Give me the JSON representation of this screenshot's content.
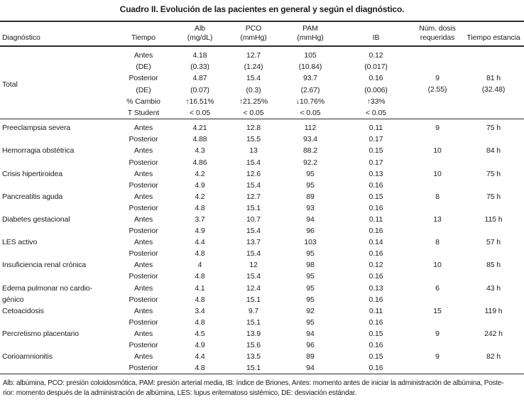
{
  "title": "Cuadro II. Evolución de las pacientes en general y según el diagnóstico.",
  "header": {
    "columns": [
      {
        "line1": "",
        "line2": "Diagnóstico"
      },
      {
        "line1": "",
        "line2": "Tiempo"
      },
      {
        "line1": "Alb",
        "line2": "(mg/dL)"
      },
      {
        "line1": "PCO",
        "line2": "(mmHg)"
      },
      {
        "line1": "PAM",
        "line2": "(mmHg)"
      },
      {
        "line1": "",
        "line2": "IB"
      },
      {
        "line1": "Núm. dosis",
        "line2": "requeridas"
      },
      {
        "line1": "",
        "line2": "Tiempo estancia"
      }
    ]
  },
  "total": {
    "label": "Total",
    "rows": [
      {
        "tiempo": "Antes",
        "alb": "4.18",
        "pco": "12.7",
        "pam": "105",
        "ib": "0.12"
      },
      {
        "tiempo": "(DE)",
        "alb": "(0.33)",
        "pco": "(1.24)",
        "pam": "(10.84)",
        "ib": "(0.017)"
      },
      {
        "tiempo": "Posterior",
        "alb": "4.87",
        "pco": "15.4",
        "pam": "93.7",
        "ib": "0.16"
      },
      {
        "tiempo": "(DE)",
        "alb": "(0.07)",
        "pco": "(0.3)",
        "pam": "(2.67)",
        "ib": "(0.006)"
      },
      {
        "tiempo": "% Cambio",
        "alb": "↑16.51%",
        "pco": "↑21.25%",
        "pam": "↓10.76%",
        "ib": "↑33%"
      },
      {
        "tiempo": "T Student",
        "alb": "< 0.05",
        "pco": "< 0.05",
        "pam": "< 0.05",
        "ib": "< 0.05"
      }
    ],
    "dosis": "9",
    "dosis_de": "(2.55)",
    "estancia": "81 h",
    "estancia_de": "(32.48)"
  },
  "time_labels": {
    "antes": "Antes",
    "posterior": "Posterior"
  },
  "diagnoses": [
    {
      "name": "Preeclampsia severa",
      "name2": "",
      "antes": {
        "alb": "4.21",
        "pco": "12.8",
        "pam": "112",
        "ib": "0.11"
      },
      "posterior": {
        "alb": "4.88",
        "pco": "15.5",
        "pam": "93.4",
        "ib": "0.17"
      },
      "dosis": "9",
      "estancia": "75 h"
    },
    {
      "name": "Hemorragia obstétrica",
      "name2": "",
      "antes": {
        "alb": "4.3",
        "pco": "13",
        "pam": "88.2",
        "ib": "0.15"
      },
      "posterior": {
        "alb": "4.86",
        "pco": "15.4",
        "pam": "92.2",
        "ib": "0.17"
      },
      "dosis": "10",
      "estancia": "84 h"
    },
    {
      "name": "Crisis hipertiroidea",
      "name2": "",
      "antes": {
        "alb": "4.2",
        "pco": "12.6",
        "pam": "95",
        "ib": "0.13"
      },
      "posterior": {
        "alb": "4.9",
        "pco": "15.4",
        "pam": "95",
        "ib": "0.16"
      },
      "dosis": "10",
      "estancia": "75 h"
    },
    {
      "name": "Pancreatitis aguda",
      "name2": "",
      "antes": {
        "alb": "4.2",
        "pco": "12.7",
        "pam": "89",
        "ib": "0.15"
      },
      "posterior": {
        "alb": "4.8",
        "pco": "15.1",
        "pam": "93",
        "ib": "0.16"
      },
      "dosis": "8",
      "estancia": "75 h"
    },
    {
      "name": "Diabetes gestacional",
      "name2": "",
      "antes": {
        "alb": "3.7",
        "pco": "10.7",
        "pam": "94",
        "ib": "0.11"
      },
      "posterior": {
        "alb": "4.9",
        "pco": "15.4",
        "pam": "96",
        "ib": "0.16"
      },
      "dosis": "13",
      "estancia": "115 h"
    },
    {
      "name": "LES activo",
      "name2": "",
      "antes": {
        "alb": "4.4",
        "pco": "13.7",
        "pam": "103",
        "ib": "0.14"
      },
      "posterior": {
        "alb": "4.8",
        "pco": "15.4",
        "pam": "95",
        "ib": "0.16"
      },
      "dosis": "8",
      "estancia": "57 h"
    },
    {
      "name": "Insuficiencia renal crónica",
      "name2": "",
      "antes": {
        "alb": "4",
        "pco": "12",
        "pam": "98",
        "ib": "0.12"
      },
      "posterior": {
        "alb": "4.8",
        "pco": "15.4",
        "pam": "95",
        "ib": "0.16"
      },
      "dosis": "10",
      "estancia": "85 h"
    },
    {
      "name": "Edema pulmonar no cardio-",
      "name2": "génico",
      "antes": {
        "alb": "4.1",
        "pco": "12.4",
        "pam": "95",
        "ib": "0.13"
      },
      "posterior": {
        "alb": "4.8",
        "pco": "15.1",
        "pam": "95",
        "ib": "0.16"
      },
      "dosis": "6",
      "estancia": "43 h"
    },
    {
      "name": "Cetoacidosis",
      "name2": "",
      "antes": {
        "alb": "3.4",
        "pco": "9.7",
        "pam": "92",
        "ib": "0.11"
      },
      "posterior": {
        "alb": "4.8",
        "pco": "15.1",
        "pam": "95",
        "ib": "0.16"
      },
      "dosis": "15",
      "estancia": "119 h"
    },
    {
      "name": "Percretismo placentario",
      "name2": "",
      "antes": {
        "alb": "4.5",
        "pco": "13.9",
        "pam": "94",
        "ib": "0.15"
      },
      "posterior": {
        "alb": "4.9",
        "pco": "15.6",
        "pam": "96",
        "ib": "0.16"
      },
      "dosis": "9",
      "estancia": "242 h"
    },
    {
      "name": "Corioamnionitis",
      "name2": "",
      "antes": {
        "alb": "4.4",
        "pco": "13.5",
        "pam": "89",
        "ib": "0.15"
      },
      "posterior": {
        "alb": "4.8",
        "pco": "15.1",
        "pam": "94",
        "ib": "0.16"
      },
      "dosis": "9",
      "estancia": "82 h"
    }
  ],
  "footnote": {
    "line1": "Alb: albúmina, PCO: presión coloidosmótica, PAM: presión arterial media, IB: índice de Briones, Antes: momento antes de iniciar la administración de albúmina, Poste-",
    "line2": "rior: momento después de la administración de albúmina, LES: lupus eritematoso sistémico, DE: desviación estándar."
  }
}
